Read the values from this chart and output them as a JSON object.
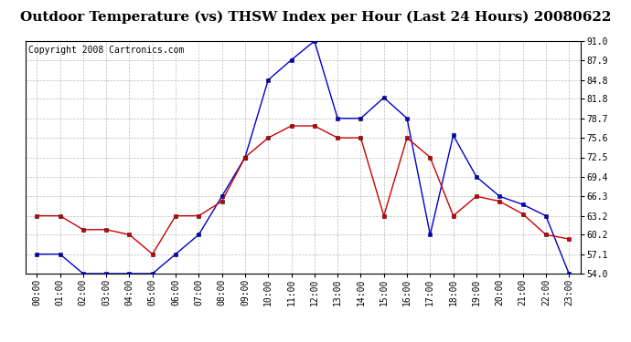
{
  "title": "Outdoor Temperature (vs) THSW Index per Hour (Last 24 Hours) 20080622",
  "copyright": "Copyright 2008 Cartronics.com",
  "hours": [
    "00:00",
    "01:00",
    "02:00",
    "03:00",
    "04:00",
    "05:00",
    "06:00",
    "07:00",
    "08:00",
    "09:00",
    "10:00",
    "11:00",
    "12:00",
    "13:00",
    "14:00",
    "15:00",
    "16:00",
    "17:00",
    "18:00",
    "19:00",
    "20:00",
    "21:00",
    "22:00",
    "23:00"
  ],
  "temp": [
    63.2,
    63.2,
    61.0,
    61.0,
    60.2,
    57.1,
    63.2,
    63.2,
    65.5,
    72.5,
    75.6,
    77.5,
    77.5,
    75.6,
    75.6,
    63.2,
    75.6,
    72.5,
    63.2,
    66.3,
    65.5,
    63.5,
    60.2,
    59.5
  ],
  "thsw": [
    57.1,
    57.1,
    54.0,
    54.0,
    54.0,
    54.0,
    57.1,
    60.2,
    66.3,
    72.5,
    84.8,
    88.0,
    91.0,
    78.7,
    78.7,
    82.0,
    78.7,
    60.2,
    76.0,
    69.4,
    66.3,
    65.0,
    63.2,
    54.0
  ],
  "ylim": [
    54.0,
    91.0
  ],
  "yticks": [
    54.0,
    57.1,
    60.2,
    63.2,
    66.3,
    69.4,
    72.5,
    75.6,
    78.7,
    81.8,
    84.8,
    87.9,
    91.0
  ],
  "temp_color": "#cc0000",
  "thsw_color": "#0000cc",
  "background_color": "#ffffff",
  "grid_color": "#aaaaaa",
  "title_fontsize": 11,
  "copyright_fontsize": 7,
  "tick_fontsize": 7
}
